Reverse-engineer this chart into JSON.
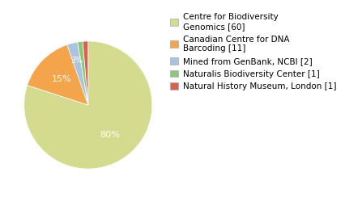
{
  "labels": [
    "Centre for Biodiversity\nGenomics [60]",
    "Canadian Centre for DNA\nBarcoding [11]",
    "Mined from GenBank, NCBI [2]",
    "Naturalis Biodiversity Center [1]",
    "Natural History Museum, London [1]"
  ],
  "values": [
    60,
    11,
    2,
    1,
    1
  ],
  "colors": [
    "#d4db8e",
    "#f4a44a",
    "#aac4e0",
    "#8dc87a",
    "#d9614e"
  ],
  "background_color": "#ffffff",
  "text_color": "#ffffff",
  "legend_fontsize": 7.5,
  "pct_fontsize": 8
}
